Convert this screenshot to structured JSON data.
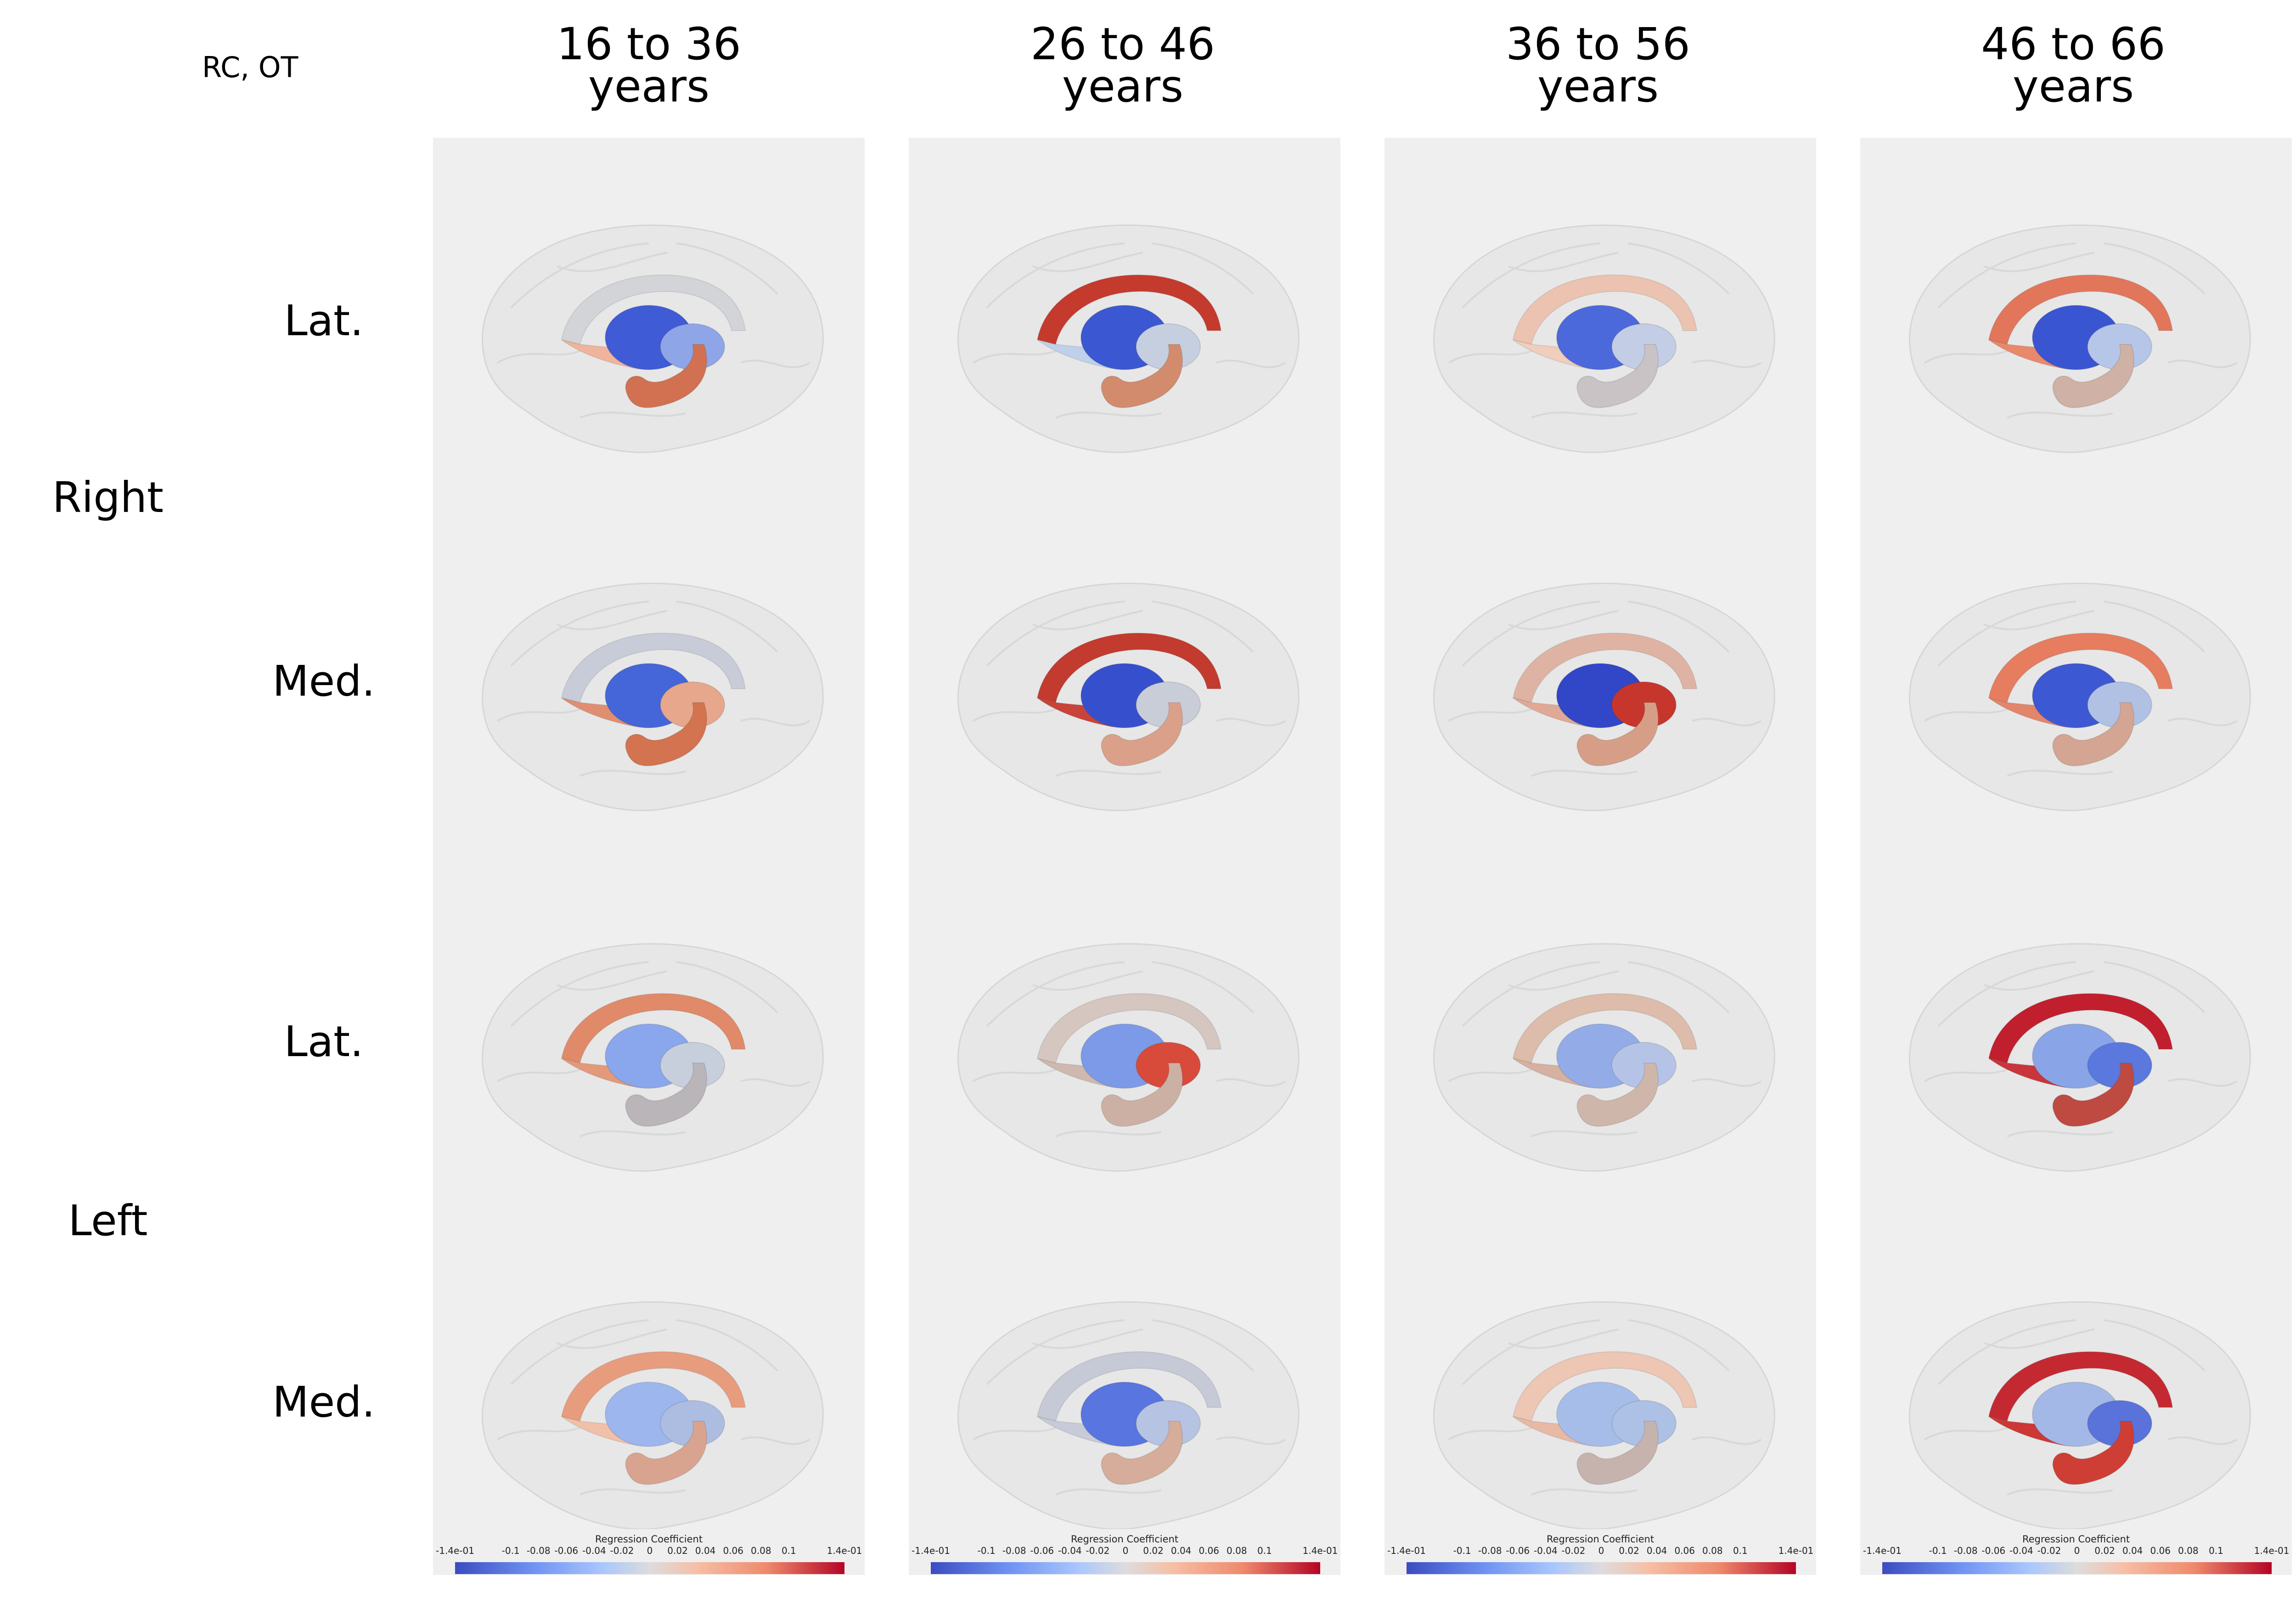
{
  "figure": {
    "corner_label": "RC, OT",
    "columns": [
      {
        "title_line1": "16 to 36",
        "title_line2": "years"
      },
      {
        "title_line1": "26 to 46",
        "title_line2": "years"
      },
      {
        "title_line1": "36 to 56",
        "title_line2": "years"
      },
      {
        "title_line1": "46 to 66",
        "title_line2": "years"
      }
    ],
    "hemispheres": [
      {
        "label": "Right"
      },
      {
        "label": "Left"
      }
    ],
    "views": [
      {
        "label": "Lat."
      },
      {
        "label": "Med."
      },
      {
        "label": "Lat."
      },
      {
        "label": "Med."
      }
    ],
    "colorbar": {
      "title": "Regression Coefficient",
      "ticks": [
        "-1.4e-01",
        "-0.1",
        "-0.08",
        "-0.06",
        "-0.04",
        "-0.02",
        "0",
        "0.02",
        "0.04",
        "0.06",
        "0.08",
        "0.1",
        "1.4e-01"
      ],
      "tick_values": [
        -0.14,
        -0.1,
        -0.08,
        -0.06,
        -0.04,
        -0.02,
        0,
        0.02,
        0.04,
        0.06,
        0.08,
        0.1,
        0.14
      ],
      "colormap": "coolwarm",
      "colors": {
        "min": "#3b4cc0",
        "mid": "#dddcdc",
        "max": "#b40426"
      }
    },
    "panel_background": "#efefef",
    "panels": [
      [
        {
          "arc": "#d2d4d8",
          "wing": "#efb49b",
          "blob": "#3f5bd6",
          "tail": "#d17152",
          "inner": "#8ea6e8"
        },
        {
          "arc": "#c8ccd8",
          "wing": "#e08e71",
          "blob": "#4566d8",
          "tail": "#d3734f",
          "inner": "#e6a78c"
        },
        {
          "arc": "#e08a6a",
          "wing": "#e29a7a",
          "blob": "#8aa6ec",
          "tail": "#b9b5b9",
          "inner": "#c7cedc"
        },
        {
          "arc": "#e89c7e",
          "wing": "#f0c0a8",
          "blob": "#9db6ee",
          "tail": "#d9a48f",
          "inner": "#adbde2"
        }
      ],
      [
        {
          "arc": "#c43a2d",
          "wing": "#bed0ea",
          "blob": "#3b57d2",
          "tail": "#d38b6e",
          "inner": "#c6cfe0"
        },
        {
          "arc": "#c33a2e",
          "wing": "#c9433a",
          "blob": "#3650cd",
          "tail": "#dba08a",
          "inner": "#c9cdd8"
        },
        {
          "arc": "#d5c6c0",
          "wing": "#ceb8b0",
          "blob": "#7d9ae8",
          "tail": "#cdb0a4",
          "inner": "#d84b3a"
        },
        {
          "arc": "#c6c9d6",
          "wing": "#c7cad8",
          "blob": "#5875e0",
          "tail": "#d6ad9b",
          "inner": "#b7c3e2"
        }
      ],
      [
        {
          "arc": "#ecc3b0",
          "wing": "#f0cdbd",
          "blob": "#4c69dc",
          "tail": "#c9c3c5",
          "inner": "#c3cde6"
        },
        {
          "arc": "#dfb3a3",
          "wing": "#dfa995",
          "blob": "#3246c8",
          "tail": "#d79e87",
          "inner": "#c6362c"
        },
        {
          "arc": "#ddbcab",
          "wing": "#d6b0a1",
          "blob": "#93ace8",
          "tail": "#cfb6ab",
          "inner": "#b5c4e6"
        },
        {
          "arc": "#edc6b4",
          "wing": "#e8b9a5",
          "blob": "#a7bde9",
          "tail": "#c6b3ad",
          "inner": "#adc0e6"
        }
      ],
      [
        {
          "arc": "#e2765a",
          "wing": "#e9896c",
          "blob": "#3a55d2",
          "tail": "#cfb1a5",
          "inner": "#b6c6e8"
        },
        {
          "arc": "#e67d5f",
          "wing": "#e2856a",
          "blob": "#3d58d3",
          "tail": "#d4a592",
          "inner": "#b0c1e4"
        },
        {
          "arc": "#c11f2e",
          "wing": "#c9353a",
          "blob": "#8aa5e7",
          "tail": "#be4a41",
          "inner": "#5a78de"
        },
        {
          "arc": "#c42931",
          "wing": "#cc3836",
          "blob": "#a3b8e6",
          "tail": "#cf3e34",
          "inner": "#5a73da"
        }
      ]
    ]
  }
}
